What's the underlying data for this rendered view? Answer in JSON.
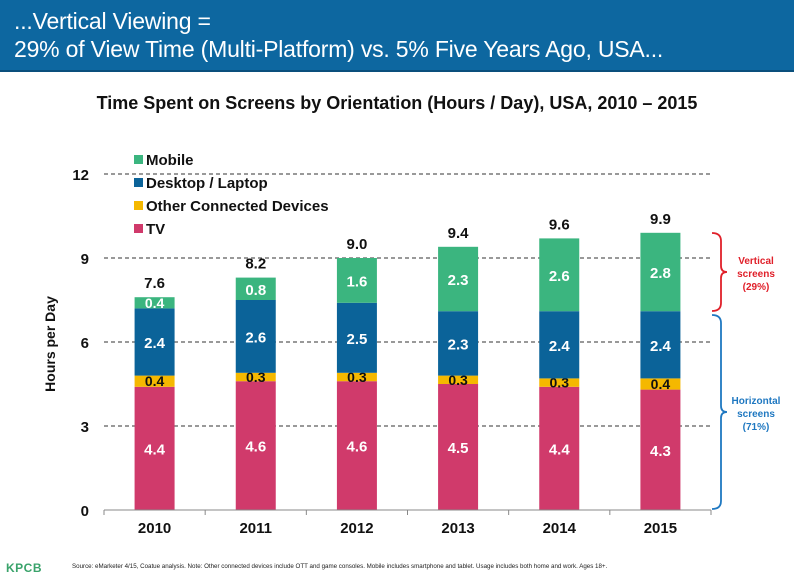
{
  "header": {
    "line1": "...Vertical Viewing =",
    "line2": "29% of View Time (Multi-Platform) vs. 5% Five Years Ago, USA...",
    "background_color": "#0d67a0"
  },
  "chart_data": {
    "type": "bar",
    "stacked": true,
    "title": "Time Spent on Screens by Orientation (Hours / Day), USA, 2010 – 2015",
    "xlabel": "",
    "ylabel": "Hours per Day",
    "ylim": [
      0,
      12
    ],
    "yticks": [
      0,
      3,
      6,
      9,
      12
    ],
    "grid": "dashed horizontal",
    "legend_position": "top-left",
    "categories": [
      "2010",
      "2011",
      "2012",
      "2013",
      "2014",
      "2015"
    ],
    "series": [
      {
        "name": "TV",
        "color": "#d03a6b",
        "label_color": "#ffffff",
        "values": [
          4.4,
          4.6,
          4.6,
          4.5,
          4.4,
          4.3
        ]
      },
      {
        "name": "Other Connected Devices",
        "color": "#f5b800",
        "label_color": "#111111",
        "values": [
          0.4,
          0.3,
          0.3,
          0.3,
          0.3,
          0.4
        ]
      },
      {
        "name": "Desktop / Laptop",
        "color": "#0b6399",
        "label_color": "#ffffff",
        "values": [
          2.4,
          2.6,
          2.5,
          2.3,
          2.4,
          2.4
        ]
      },
      {
        "name": "Mobile",
        "color": "#3bb57f",
        "label_color": "#ffffff",
        "values": [
          0.4,
          0.8,
          1.6,
          2.3,
          2.6,
          2.8
        ]
      }
    ],
    "totals": [
      "7.6",
      "8.2",
      "9.0",
      "9.4",
      "9.6",
      "9.9"
    ],
    "legend_order": [
      "Mobile",
      "Desktop / Laptop",
      "Other Connected Devices",
      "TV"
    ],
    "annotations": [
      {
        "text_lines": [
          "Vertical",
          "screens",
          "(29%)"
        ],
        "color": "#e0202a",
        "spans": [
          7.0,
          9.9
        ]
      },
      {
        "text_lines": [
          "Horizontal",
          "screens",
          "(71%)"
        ],
        "color": "#1f78c1",
        "spans": [
          0,
          7.0
        ]
      }
    ]
  },
  "footer": {
    "logo": "KPCB",
    "source": "Source: eMarketer 4/15, Coatue analysis. Note: Other connected devices include OTT and game consoles. Mobile includes smartphone and tablet. Usage includes both home and work. Ages 18+."
  }
}
